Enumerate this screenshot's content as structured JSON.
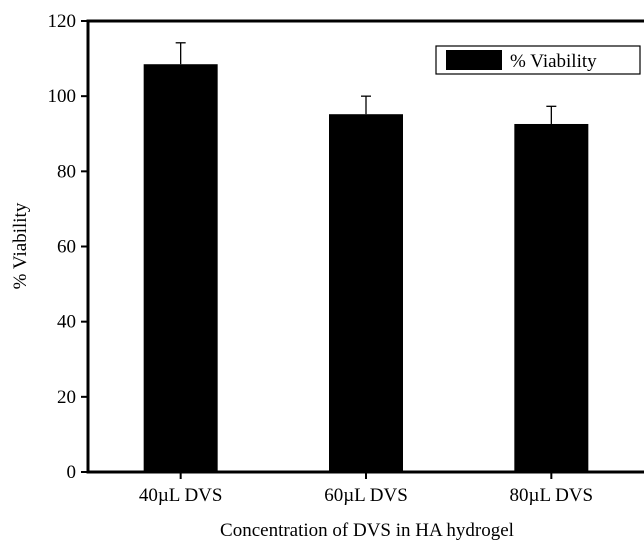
{
  "chart_data": {
    "type": "bar",
    "title": "",
    "xlabel": "Concentration of DVS in HA hydrogel",
    "ylabel": "% Viability",
    "categories": [
      "40µL DVS",
      "60µL DVS",
      "80µL DVS"
    ],
    "series": [
      {
        "name": "% Viability",
        "values": [
          108.5,
          95.2,
          92.6
        ],
        "errors": [
          5.7,
          4.8,
          4.7
        ],
        "color": "#000000"
      }
    ],
    "ylim": [
      0,
      120
    ],
    "yticks": [
      0,
      20,
      40,
      60,
      80,
      100,
      120
    ],
    "grid": false,
    "legend": {
      "position": "top-right",
      "labels": [
        "% Viability"
      ]
    }
  }
}
